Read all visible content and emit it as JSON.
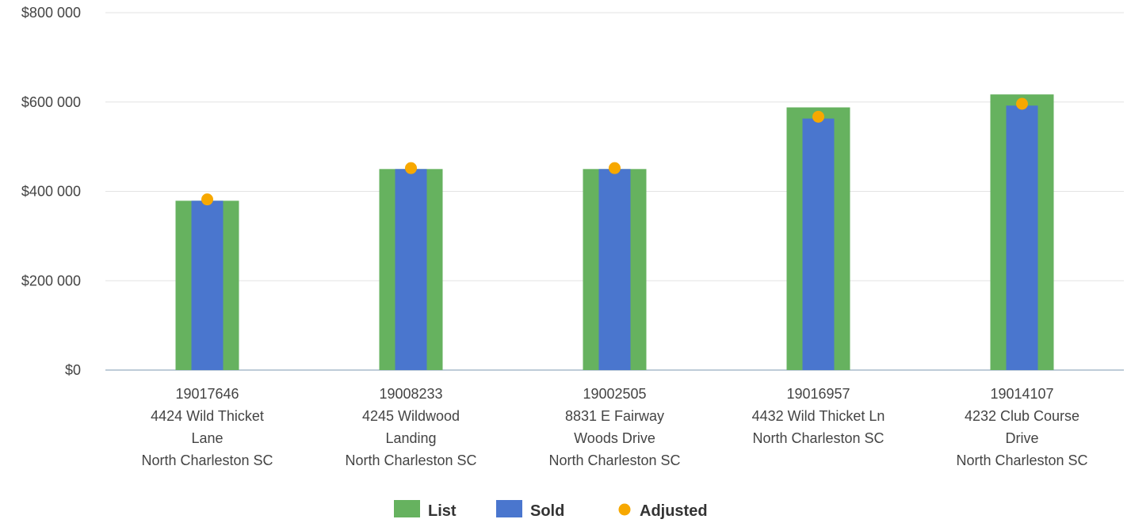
{
  "chart_data": {
    "type": "bar",
    "categories": [
      [
        "19017646",
        "4424 Wild Thicket",
        "Lane",
        "North Charleston SC"
      ],
      [
        "19008233",
        "4245 Wildwood",
        "Landing",
        "North Charleston SC"
      ],
      [
        "19002505",
        "8831 E Fairway",
        "Woods Drive",
        "North Charleston SC"
      ],
      [
        "19016957",
        "4432 Wild Thicket Ln",
        "North Charleston SC"
      ],
      [
        "19014107",
        "4232 Club Course",
        "Drive",
        "North Charleston SC"
      ]
    ],
    "series": [
      {
        "name": "List",
        "type": "bar",
        "color": "#66b25f",
        "values": [
          379000,
          450000,
          450000,
          588000,
          617000
        ]
      },
      {
        "name": "Sold",
        "type": "bar",
        "color": "#4a76ce",
        "values": [
          379000,
          450000,
          450000,
          563000,
          592000
        ]
      },
      {
        "name": "Adjusted",
        "type": "scatter",
        "color": "#f7a800",
        "values": [
          382000,
          452000,
          452000,
          567000,
          596000
        ]
      }
    ],
    "yticks": [
      "$0",
      "$200 000",
      "$400 000",
      "$600 000",
      "$800 000"
    ],
    "ylim": [
      0,
      800000
    ],
    "grid": true,
    "legend_position": "bottom"
  }
}
